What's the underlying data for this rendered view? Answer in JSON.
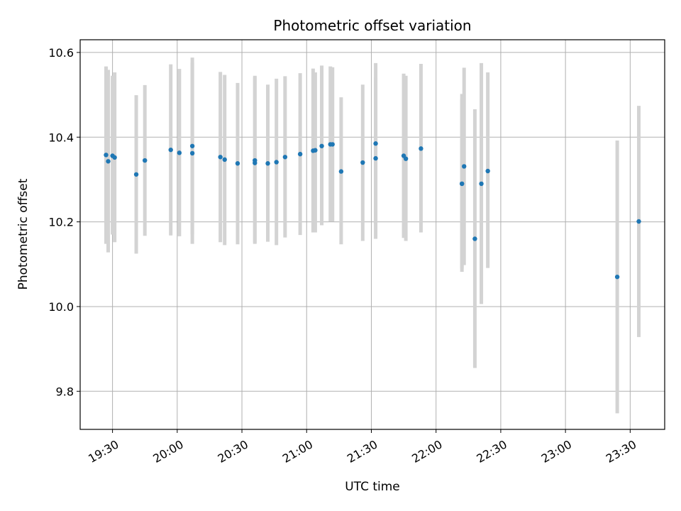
{
  "chart_data": {
    "type": "scatter",
    "title": "Photometric offset variation",
    "xlabel": "UTC time",
    "ylabel": "Photometric offset",
    "x_ticks": [
      "19:30",
      "20:00",
      "20:30",
      "21:00",
      "21:30",
      "22:00",
      "22:30",
      "23:00",
      "23:30"
    ],
    "x_tick_minutes": [
      1170,
      1200,
      1230,
      1260,
      1290,
      1320,
      1350,
      1380,
      1410
    ],
    "xlim": [
      1155,
      1426
    ],
    "y_ticks": [
      "9.8",
      "10.0",
      "10.2",
      "10.4",
      "10.6"
    ],
    "y_tick_values": [
      9.8,
      10.0,
      10.2,
      10.4,
      10.6
    ],
    "ylim": [
      9.71,
      10.63
    ],
    "grid": true,
    "point_color": "#1f77b4",
    "errorbar_color": "#d3d3d3",
    "points": [
      {
        "time": "19:27",
        "y": 10.358,
        "lo": 10.148,
        "hi": 10.567
      },
      {
        "time": "19:28",
        "y": 10.343,
        "lo": 10.128,
        "hi": 10.559
      },
      {
        "time": "19:30",
        "y": 10.356,
        "lo": 10.17,
        "hi": 10.545
      },
      {
        "time": "19:31",
        "y": 10.352,
        "lo": 10.152,
        "hi": 10.553
      },
      {
        "time": "19:41",
        "y": 10.312,
        "lo": 10.125,
        "hi": 10.499
      },
      {
        "time": "19:45",
        "y": 10.345,
        "lo": 10.167,
        "hi": 10.523
      },
      {
        "time": "19:57",
        "y": 10.37,
        "lo": 10.168,
        "hi": 10.572
      },
      {
        "time": "20:01",
        "y": 10.363,
        "lo": 10.166,
        "hi": 10.561
      },
      {
        "time": "20:07",
        "y": 10.362,
        "lo": 10.148,
        "hi": 10.576
      },
      {
        "time": "20:07",
        "y": 10.379,
        "lo": 10.17,
        "hi": 10.588
      },
      {
        "time": "20:20",
        "y": 10.353,
        "lo": 10.152,
        "hi": 10.554
      },
      {
        "time": "20:22",
        "y": 10.347,
        "lo": 10.145,
        "hi": 10.547
      },
      {
        "time": "20:28",
        "y": 10.338,
        "lo": 10.147,
        "hi": 10.528
      },
      {
        "time": "20:36",
        "y": 10.345,
        "lo": 10.148,
        "hi": 10.542
      },
      {
        "time": "20:36",
        "y": 10.339,
        "lo": 10.15,
        "hi": 10.545
      },
      {
        "time": "20:42",
        "y": 10.338,
        "lo": 10.153,
        "hi": 10.524
      },
      {
        "time": "20:46",
        "y": 10.341,
        "lo": 10.145,
        "hi": 10.538
      },
      {
        "time": "20:50",
        "y": 10.353,
        "lo": 10.163,
        "hi": 10.544
      },
      {
        "time": "20:57",
        "y": 10.36,
        "lo": 10.169,
        "hi": 10.551
      },
      {
        "time": "21:03",
        "y": 10.368,
        "lo": 10.175,
        "hi": 10.562
      },
      {
        "time": "21:04",
        "y": 10.369,
        "lo": 10.175,
        "hi": 10.553
      },
      {
        "time": "21:07",
        "y": 10.379,
        "lo": 10.192,
        "hi": 10.569
      },
      {
        "time": "21:11",
        "y": 10.383,
        "lo": 10.201,
        "hi": 10.567
      },
      {
        "time": "21:12",
        "y": 10.383,
        "lo": 10.201,
        "hi": 10.565
      },
      {
        "time": "21:16",
        "y": 10.319,
        "lo": 10.147,
        "hi": 10.494
      },
      {
        "time": "21:26",
        "y": 10.34,
        "lo": 10.155,
        "hi": 10.524
      },
      {
        "time": "21:32",
        "y": 10.35,
        "lo": 10.16,
        "hi": 10.54
      },
      {
        "time": "21:32",
        "y": 10.385,
        "lo": 10.197,
        "hi": 10.575
      },
      {
        "time": "21:45",
        "y": 10.356,
        "lo": 10.162,
        "hi": 10.55
      },
      {
        "time": "21:46",
        "y": 10.349,
        "lo": 10.155,
        "hi": 10.545
      },
      {
        "time": "21:53",
        "y": 10.373,
        "lo": 10.175,
        "hi": 10.573
      },
      {
        "time": "22:12",
        "y": 10.29,
        "lo": 10.082,
        "hi": 10.502
      },
      {
        "time": "22:12",
        "y": 10.29,
        "lo": 10.09,
        "hi": 10.49
      },
      {
        "time": "22:13",
        "y": 10.331,
        "lo": 10.098,
        "hi": 10.564
      },
      {
        "time": "22:18",
        "y": 10.16,
        "lo": 9.855,
        "hi": 10.466
      },
      {
        "time": "22:21",
        "y": 10.29,
        "lo": 10.006,
        "hi": 10.575
      },
      {
        "time": "22:24",
        "y": 10.32,
        "lo": 10.091,
        "hi": 10.553
      },
      {
        "time": "23:24",
        "y": 10.07,
        "lo": 9.748,
        "hi": 10.392
      },
      {
        "time": "23:34",
        "y": 10.201,
        "lo": 9.928,
        "hi": 10.474
      }
    ]
  }
}
